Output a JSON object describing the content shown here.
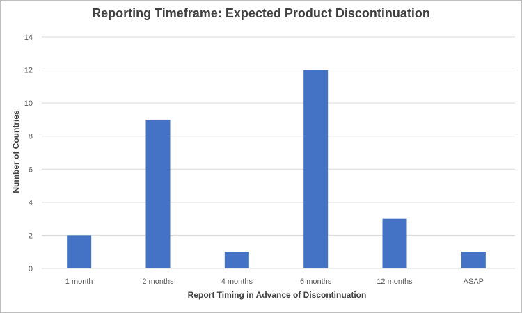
{
  "chart_data": {
    "type": "bar",
    "title": "Reporting Timeframe: Expected Product Discontinuation",
    "xlabel": "Report Timing in Advance of Discontinuation",
    "ylabel": "Number of Countries",
    "categories": [
      "1 month",
      "2 months",
      "4 months",
      "6 months",
      "12 months",
      "ASAP"
    ],
    "values": [
      2,
      9,
      1,
      12,
      3,
      1
    ],
    "ylim": [
      0,
      14
    ],
    "yticks": [
      "0",
      "2",
      "4",
      "6",
      "8",
      "10",
      "12",
      "14"
    ],
    "grid": true,
    "legend": "none",
    "bar_color": "#4472c4",
    "grid_color": "#d9d9d9"
  }
}
